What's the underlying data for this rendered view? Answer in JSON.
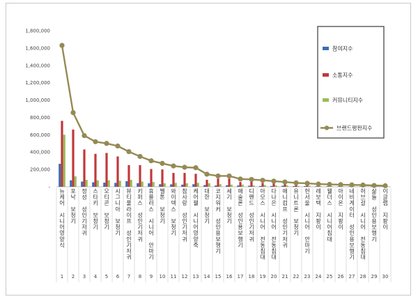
{
  "chart_data": {
    "type": "bar",
    "ylim": [
      0,
      1800000
    ],
    "yticks": [
      "-",
      "200,000",
      "400,000",
      "600,000",
      "800,000",
      "1,000,000",
      "1,200,000",
      "1,400,000",
      "1,600,000",
      "1,800,000"
    ],
    "grid": false,
    "legend_position": "right",
    "x": [
      "1",
      "2",
      "3",
      "4",
      "5",
      "6",
      "7",
      "8",
      "9",
      "10",
      "11",
      "12",
      "13",
      "14",
      "15",
      "16",
      "17",
      "18",
      "19",
      "20",
      "21",
      "22",
      "23",
      "24",
      "25",
      "26",
      "27",
      "28",
      "29",
      "30"
    ],
    "categories": [
      "뉴케어 시니어영양식",
      "포낙 보청기",
      "정성 성인기저귀",
      "스타키 보청기",
      "오티콘 보청기",
      "시그니아 보청기",
      "뷰티풀라이프 성인기저귀",
      "키퍼스 성인기저귀",
      "휴플러스 시니어 안마기",
      "벨톤 보청기",
      "와이덱스 보청기",
      "참사랑 성인기저귀",
      "케어웰 시니어영양죽",
      "대한 보청기",
      "코지워커 성인용보행기",
      "세기 보청기",
      "애술론 성인용보행기",
      "디팬드 성인기저귀",
      "아모스 시니어 전동침대",
      "다나은 시니어 전동침대",
      "애니컴프 성인기저귀",
      "유니트론 보청기",
      "헌서울 시니어 안마기",
      "레보텍 지팡이",
      "웰더스 시니어침대",
      "아이온 지팡이",
      "네비게이터 성인용보행기",
      "허브걸 시니어 전동침대",
      "삶들 성인용보행기",
      "이글랩 지팡이"
    ],
    "series": [
      {
        "name": "참여지수",
        "type": "bar",
        "color": "#3d6eb3",
        "values": [
          265000,
          75000,
          60000,
          52000,
          48000,
          45000,
          65000,
          42000,
          40000,
          30000,
          28000,
          25000,
          30000,
          20000,
          15000,
          18000,
          15000,
          12000,
          10000,
          10000,
          12000,
          8000,
          8000,
          6000,
          6000,
          5000,
          5000,
          5000,
          4000,
          3000
        ]
      },
      {
        "name": "소통지수",
        "type": "bar",
        "color": "#c0393b",
        "values": [
          760000,
          660000,
          430000,
          380000,
          390000,
          350000,
          250000,
          250000,
          205000,
          200000,
          160000,
          160000,
          150000,
          80000,
          95000,
          95000,
          55000,
          60000,
          45000,
          40000,
          30000,
          30000,
          22000,
          18000,
          15000,
          14000,
          12000,
          10000,
          8000,
          5000
        ]
      },
      {
        "name": "커뮤니티지수",
        "type": "bar",
        "color": "#9bbb59",
        "values": [
          600000,
          120000,
          80000,
          75000,
          75000,
          70000,
          80000,
          60000,
          55000,
          40000,
          45000,
          40000,
          45000,
          40000,
          30000,
          25000,
          25000,
          15000,
          20000,
          15000,
          15000,
          10000,
          12000,
          8000,
          8000,
          6000,
          6000,
          5000,
          5000,
          4000
        ]
      },
      {
        "name": "브랜드평판지수",
        "type": "line",
        "color": "#948a54",
        "values": [
          1630000,
          855000,
          590000,
          520000,
          500000,
          470000,
          405000,
          350000,
          300000,
          270000,
          240000,
          225000,
          220000,
          145000,
          125000,
          125000,
          90000,
          85000,
          75000,
          65000,
          55000,
          45000,
          40000,
          32000,
          28000,
          25000,
          22000,
          20000,
          15000,
          12000
        ]
      }
    ]
  }
}
